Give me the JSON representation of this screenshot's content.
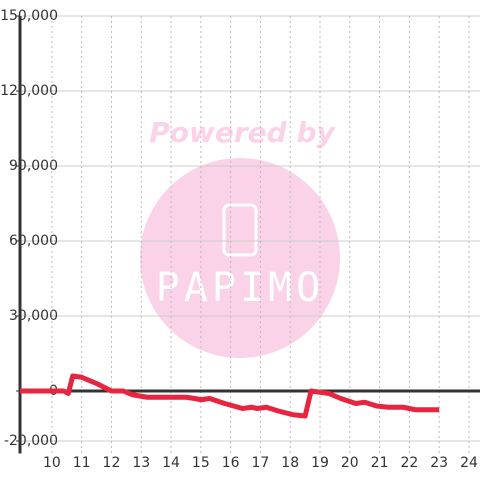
{
  "chart_data": {
    "type": "line",
    "watermark": {
      "text": "Powered by",
      "logo": "PAPIMO"
    },
    "x": [
      8.93,
      10.4,
      10.55,
      10.7,
      11,
      11.5,
      12,
      12.4,
      12.7,
      13.2,
      14,
      14.5,
      14.8,
      15,
      15.3,
      15.8,
      16.1,
      16.4,
      16.7,
      16.9,
      17.2,
      17.6,
      18.1,
      18.5,
      18.7,
      19.3,
      19.7,
      20.2,
      20.5,
      20.9,
      21.3,
      21.8,
      22.2,
      23
    ],
    "series": [
      {
        "name": "series",
        "color": "#e8253e",
        "values": [
          0,
          0,
          -1000,
          6000,
          5500,
          3000,
          0,
          0,
          -1500,
          -2500,
          -2500,
          -2500,
          -3000,
          -3500,
          -3000,
          -5000,
          -6000,
          -7000,
          -6500,
          -7000,
          -6500,
          -8000,
          -9500,
          -10000,
          0,
          -1000,
          -3000,
          -5000,
          -4500,
          -6000,
          -6500,
          -6500,
          -7500,
          -7500
        ]
      }
    ],
    "xlim": [
      8.93,
      24.37
    ],
    "xticks": [
      10,
      11,
      12,
      13,
      14,
      15,
      16,
      17,
      18,
      19,
      20,
      21,
      22,
      23,
      24
    ],
    "ylim": [
      -25000,
      150000
    ],
    "yticks": [
      {
        "value": -20000,
        "label": "-20,000"
      },
      0,
      {
        "value": 30000,
        "label": "30,000"
      },
      {
        "value": 60000,
        "label": "60,000"
      },
      {
        "value": 90000,
        "label": "90,000"
      },
      {
        "value": 120000,
        "label": "120,000"
      },
      {
        "value": 150000,
        "label": "150,000"
      }
    ],
    "grid": true
  }
}
